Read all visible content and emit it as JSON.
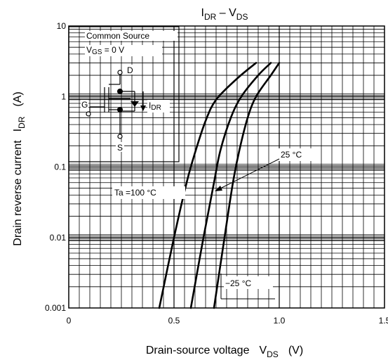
{
  "chart_data": {
    "type": "line",
    "title": {
      "main": "I",
      "main_sub": "DR",
      "sep": " – V",
      "tail_sub": "DS"
    },
    "xlabel": {
      "text": "Drain-source voltage",
      "symbol": "V",
      "symbol_sub": "DS",
      "unit": "(V)"
    },
    "ylabel": {
      "text": "Drain reverse current",
      "symbol": "I",
      "symbol_sub": "DR",
      "unit": "(A)"
    },
    "xlim": [
      0,
      1.5
    ],
    "ylim": [
      0.001,
      10
    ],
    "yscale": "log",
    "grid": true,
    "x_ticks": [
      {
        "value": 0,
        "label": "0"
      },
      {
        "value": 0.5,
        "label": "0.5"
      },
      {
        "value": 1.0,
        "label": "1.0"
      },
      {
        "value": 1.5,
        "label": "1.5"
      }
    ],
    "y_ticks": [
      {
        "value": 0.001,
        "label": "0.001"
      },
      {
        "value": 0.01,
        "label": "0.01"
      },
      {
        "value": 0.1,
        "label": "0.1"
      },
      {
        "value": 1,
        "label": "1"
      },
      {
        "value": 10,
        "label": "10"
      }
    ],
    "series": [
      {
        "name": "Ta = 100 °C",
        "points": [
          [
            0.43,
            0.001
          ],
          [
            0.5,
            0.01
          ],
          [
            0.56,
            0.06
          ],
          [
            0.6,
            0.16
          ],
          [
            0.65,
            0.45
          ],
          [
            0.7,
            0.9
          ],
          [
            0.8,
            1.8
          ],
          [
            0.89,
            3.0
          ]
        ]
      },
      {
        "name": "25 °C",
        "points": [
          [
            0.58,
            0.001
          ],
          [
            0.64,
            0.01
          ],
          [
            0.69,
            0.06
          ],
          [
            0.72,
            0.17
          ],
          [
            0.77,
            0.5
          ],
          [
            0.82,
            1.0
          ],
          [
            0.9,
            2.0
          ],
          [
            0.96,
            3.0
          ]
        ]
      },
      {
        "name": "−25 °C",
        "points": [
          [
            0.69,
            0.001
          ],
          [
            0.74,
            0.01
          ],
          [
            0.78,
            0.06
          ],
          [
            0.81,
            0.17
          ],
          [
            0.85,
            0.5
          ],
          [
            0.89,
            1.0
          ],
          [
            0.96,
            2.0
          ],
          [
            1.0,
            3.0
          ]
        ]
      }
    ],
    "annotations": {
      "label_100": {
        "text": "Ta =100 °C"
      },
      "label_25": {
        "text": "25 °C"
      },
      "label_m25": {
        "text": "−25 °C"
      }
    },
    "inset": {
      "title": "Common Source",
      "condition_main": "V",
      "condition_sub": "GS",
      "condition_tail": " = 0 V",
      "pin_d": "D",
      "pin_g": "G",
      "pin_s": "S",
      "current_main": "I",
      "current_sub": "DR"
    }
  }
}
